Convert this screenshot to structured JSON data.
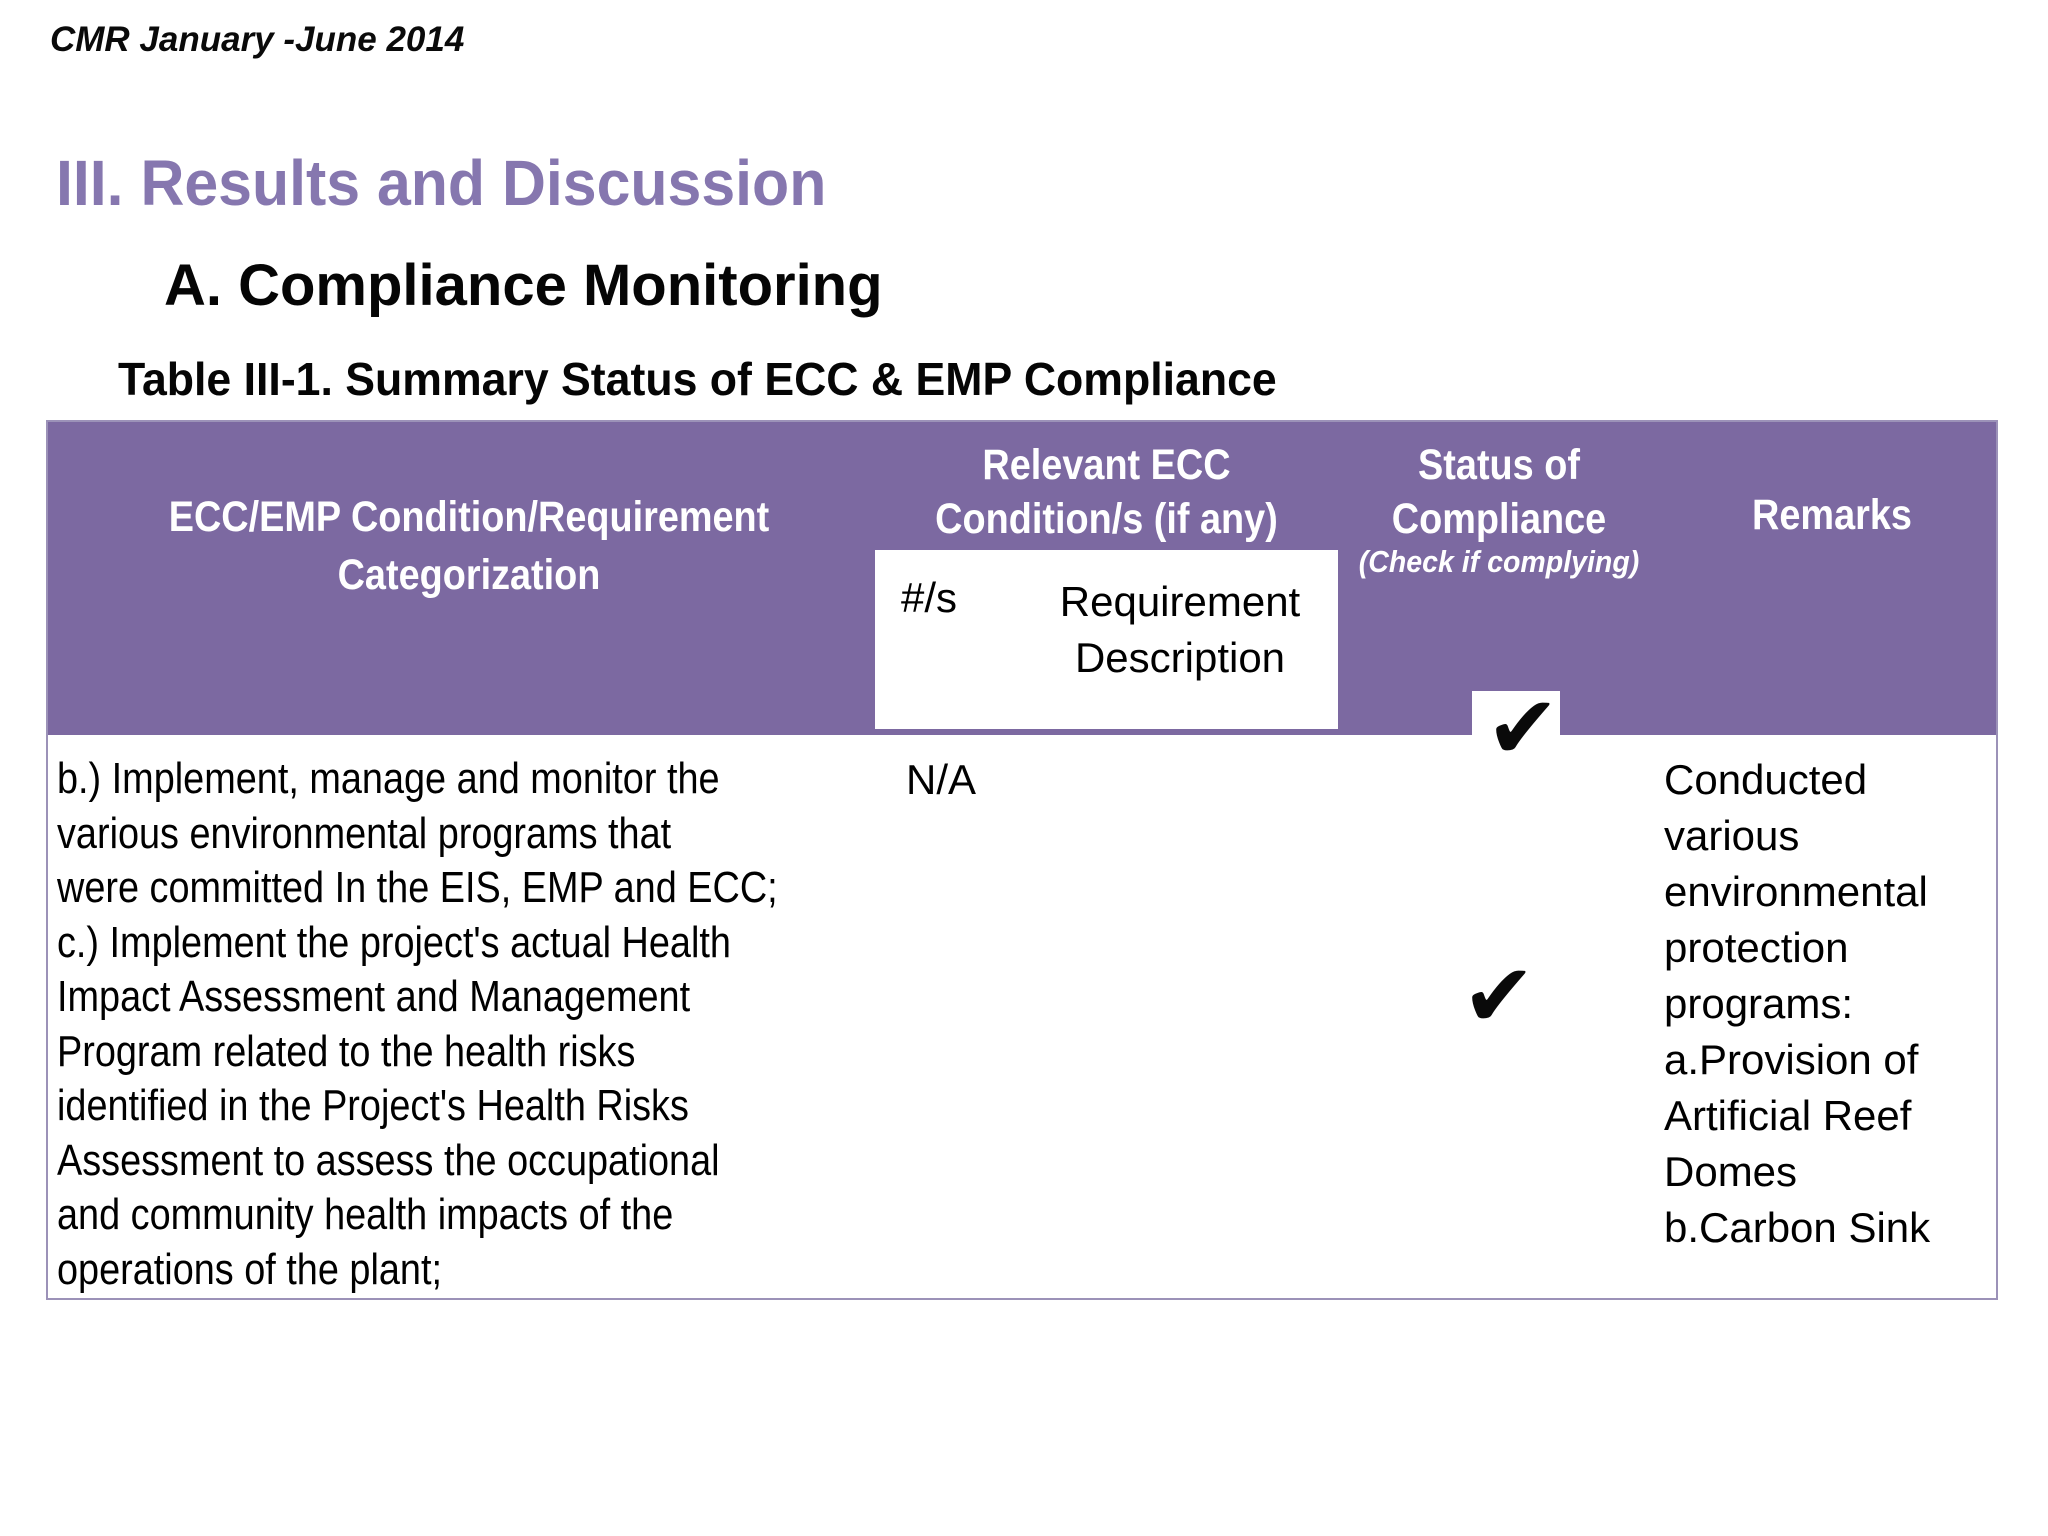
{
  "page": {
    "header_note": "CMR January -June 2014",
    "section_title": "III. Results and Discussion",
    "subsection_title": "A. Compliance Monitoring",
    "table_title": "Table III-1. Summary Status of ECC & EMP Compliance"
  },
  "colors": {
    "table_header_purple": "#7C69A1",
    "section_title_purple": "#8677AF",
    "table_border": "#9C92B8",
    "text": "#000000",
    "header_text": "#ffffff"
  },
  "table": {
    "header": {
      "col1": [
        "ECC/EMP Condition/Requirement",
        "Categorization"
      ],
      "col2": [
        "Relevant ECC",
        "Condition/s (if any)"
      ],
      "col2_sub_num": "#/s",
      "col2_sub_desc": [
        "Requirement",
        "Description"
      ],
      "col3": [
        "Status of",
        "Compliance"
      ],
      "col3_note": "(Check if complying)",
      "col4": "Remarks"
    },
    "check_icon": "✔",
    "row": {
      "condition": [
        "b.) Implement, manage and monitor the",
        "various environmental programs that",
        "were committed In the EIS, EMP and ECC;",
        "c.) Implement the project's actual Health",
        "Impact Assessment and Management",
        "Program related to the health risks",
        "identified in the Project's Health Risks",
        "Assessment to assess the occupational",
        "and community health impacts of the",
        "operations of the plant;"
      ],
      "relevant_ecc": "N/A",
      "status_of_compliance": [
        "checked",
        "checked"
      ],
      "remarks": [
        "Conducted",
        "various",
        "environmental",
        "protection",
        "programs:",
        "a.Provision of",
        "Artificial Reef",
        "Domes",
        "b.Carbon Sink"
      ]
    }
  }
}
